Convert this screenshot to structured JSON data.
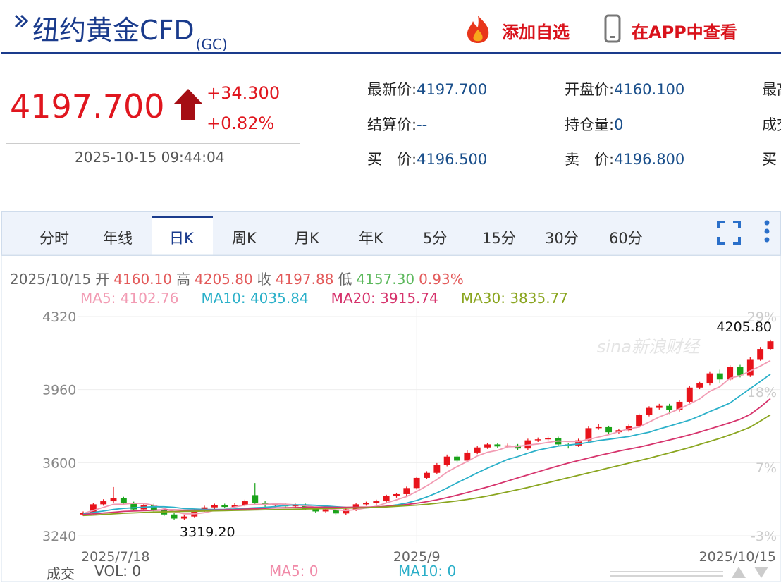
{
  "header": {
    "title": "纽约黄金CFD",
    "code": "(GC)",
    "actions": [
      "添加自选",
      "在APP中查看"
    ]
  },
  "quote": {
    "price": "4197.700",
    "change": "+34.300",
    "change_pct": "+0.82%",
    "time": "2025-10-15 09:44:04",
    "fields": [
      [
        {
          "label": "最新价:",
          "value": "4197.700"
        },
        {
          "label": "开盘价:",
          "value": "4160.100"
        },
        {
          "label": "最高价:"
        }
      ],
      [
        {
          "label": "结算价:",
          "value": "--"
        },
        {
          "label": "持仓量:",
          "value": "0"
        },
        {
          "label": "成交量:"
        }
      ],
      [
        {
          "label": "买　价:",
          "value": "4196.500"
        },
        {
          "label": "卖　价:",
          "value": "4196.800"
        },
        {
          "label": "买　量:"
        }
      ]
    ]
  },
  "tabs": {
    "items": [
      "分时",
      "年线",
      "日K",
      "周K",
      "月K",
      "年K",
      "5分",
      "15分",
      "30分",
      "60分"
    ],
    "active": 2
  },
  "info_line": {
    "date": "2025/10/15",
    "items": [
      {
        "label": "开",
        "value": "4160.10",
        "color": "#e35a5a"
      },
      {
        "label": "高",
        "value": "4205.80",
        "color": "#e35a5a"
      },
      {
        "label": "收",
        "value": "4197.88",
        "color": "#e35a5a"
      },
      {
        "label": "低",
        "value": "4157.30",
        "color": "#5cb85c"
      }
    ],
    "change": "0.93%",
    "change_color": "#e35a5a"
  },
  "volume_line": {
    "label": "成交",
    "items": [
      {
        "text": "VOL: 0",
        "color": "#555555"
      },
      {
        "text": "MA5: 0",
        "color": "#f08aa8"
      },
      {
        "text": "MA10: 0",
        "color": "#2aaec8"
      }
    ]
  },
  "chart_data": {
    "type": "candlestick",
    "watermark": "sina新浪财经",
    "categories": [
      "2025/7/18",
      null,
      null,
      null,
      null,
      null,
      null,
      null,
      null,
      null,
      null,
      null,
      null,
      null,
      null,
      null,
      null,
      null,
      null,
      null,
      null,
      null,
      null,
      null,
      null,
      null,
      null,
      null,
      null,
      null,
      null,
      null,
      null,
      "2025/9",
      null,
      null,
      null,
      null,
      null,
      null,
      null,
      null,
      null,
      null,
      null,
      null,
      null,
      null,
      null,
      null,
      null,
      null,
      null,
      null,
      null,
      null,
      null,
      null,
      null,
      null,
      null,
      null,
      null,
      null,
      null,
      null,
      null,
      null,
      "2025/10/15"
    ],
    "open": [
      3345,
      3352,
      3395,
      3410,
      3425,
      3400,
      3370,
      3390,
      3365,
      3345,
      3325,
      3335,
      3365,
      3380,
      3390,
      3382,
      3392,
      3440,
      3400,
      3390,
      3395,
      3385,
      3390,
      3372,
      3360,
      3370,
      3350,
      3370,
      3395,
      3400,
      3410,
      3435,
      3445,
      3475,
      3525,
      3550,
      3590,
      3630,
      3610,
      3650,
      3675,
      3690,
      3680,
      3685,
      3670,
      3710,
      3715,
      3720,
      3690,
      3685,
      3710,
      3770,
      3775,
      3750,
      3760,
      3780,
      3835,
      3870,
      3880,
      3860,
      3900,
      3970,
      3990,
      4040,
      4010,
      4070,
      4030,
      4110,
      4160.1
    ],
    "high": [
      3360,
      3402,
      3420,
      3480,
      3432,
      3408,
      3398,
      3398,
      3372,
      3352,
      3342,
      3372,
      3388,
      3398,
      3398,
      3400,
      3418,
      3500,
      3410,
      3402,
      3402,
      3398,
      3398,
      3380,
      3378,
      3378,
      3378,
      3402,
      3408,
      3418,
      3442,
      3452,
      3482,
      3532,
      3558,
      3598,
      3640,
      3640,
      3660,
      3684,
      3698,
      3698,
      3694,
      3692,
      3718,
      3724,
      3728,
      3728,
      3698,
      3718,
      3778,
      3790,
      3782,
      3768,
      3788,
      3842,
      3878,
      3890,
      3890,
      3910,
      3978,
      3998,
      4050,
      4058,
      4080,
      4082,
      4120,
      4170,
      4205.8
    ],
    "low": [
      3338,
      3345,
      3388,
      3402,
      3392,
      3362,
      3362,
      3357,
      3337,
      3319.2,
      3320,
      3328,
      3358,
      3372,
      3375,
      3375,
      3385,
      3392,
      3382,
      3382,
      3378,
      3378,
      3365,
      3352,
      3352,
      3342,
      3342,
      3362,
      3388,
      3392,
      3402,
      3428,
      3438,
      3468,
      3518,
      3542,
      3582,
      3602,
      3602,
      3642,
      3668,
      3672,
      3672,
      3662,
      3662,
      3702,
      3708,
      3682,
      3670,
      3678,
      3702,
      3762,
      3742,
      3742,
      3752,
      3772,
      3828,
      3862,
      3840,
      3852,
      3892,
      3962,
      3982,
      3990,
      4002,
      4020,
      4022,
      4102,
      4157.3
    ],
    "close": [
      3352,
      3395,
      3410,
      3425,
      3400,
      3370,
      3390,
      3365,
      3345,
      3325,
      3335,
      3365,
      3380,
      3390,
      3382,
      3392,
      3410,
      3400,
      3390,
      3395,
      3385,
      3390,
      3372,
      3360,
      3370,
      3350,
      3370,
      3395,
      3400,
      3410,
      3435,
      3445,
      3475,
      3525,
      3550,
      3590,
      3630,
      3610,
      3650,
      3675,
      3690,
      3680,
      3685,
      3670,
      3710,
      3715,
      3720,
      3690,
      3685,
      3710,
      3770,
      3775,
      3750,
      3760,
      3780,
      3835,
      3870,
      3880,
      3860,
      3900,
      3970,
      3990,
      4040,
      4010,
      4070,
      4030,
      4110,
      4160,
      4197.88
    ],
    "up_color": "#e8131b",
    "down_color": "#1aa31a",
    "max_label": "4205.80",
    "min_label": "3319.20",
    "ma_series": [
      {
        "name": "MA5: 4102.76",
        "color": "#f29bb3",
        "values": [
          3350,
          3365,
          3380,
          3395,
          3396,
          3400,
          3399,
          3390,
          3374,
          3359,
          3348,
          3348,
          3354,
          3365,
          3370,
          3382,
          3391,
          3395,
          3395,
          3397,
          3396,
          3392,
          3388,
          3380,
          3375,
          3368,
          3364,
          3369,
          3377,
          3385,
          3402,
          3417,
          3433,
          3458,
          3486,
          3517,
          3554,
          3581,
          3606,
          3633,
          3651,
          3661,
          3678,
          3680,
          3687,
          3692,
          3700,
          3707,
          3704,
          3704,
          3715,
          3726,
          3738,
          3753,
          3767,
          3776,
          3800,
          3825,
          3845,
          3865,
          3889,
          3914,
          3952,
          3974,
          4016,
          4028,
          4052,
          4076,
          4102.76
        ]
      },
      {
        "name": "MA10: 4035.84",
        "color": "#2bb0c9",
        "values": [
          3348,
          3355,
          3362,
          3370,
          3375,
          3378,
          3381,
          3383,
          3383,
          3380,
          3374,
          3372,
          3370,
          3370,
          3370,
          3372,
          3375,
          3378,
          3380,
          3384,
          3389,
          3392,
          3392,
          3390,
          3387,
          3383,
          3380,
          3379,
          3378,
          3380,
          3385,
          3392,
          3401,
          3414,
          3431,
          3451,
          3475,
          3501,
          3525,
          3550,
          3573,
          3595,
          3616,
          3630,
          3647,
          3662,
          3672,
          3682,
          3687,
          3692,
          3700,
          3709,
          3715,
          3722,
          3729,
          3740,
          3750,
          3766,
          3780,
          3795,
          3810,
          3830,
          3852,
          3872,
          3894,
          3930,
          3965,
          4000,
          4035.84
        ]
      },
      {
        "name": "MA20: 3915.74",
        "color": "#d6336c",
        "values": [
          3345,
          3348,
          3352,
          3356,
          3360,
          3362,
          3364,
          3366,
          3367,
          3367,
          3366,
          3366,
          3366,
          3367,
          3368,
          3369,
          3371,
          3373,
          3375,
          3377,
          3378,
          3379,
          3380,
          3381,
          3381,
          3380,
          3380,
          3381,
          3381,
          3382,
          3385,
          3389,
          3394,
          3400,
          3408,
          3417,
          3428,
          3440,
          3453,
          3467,
          3480,
          3495,
          3510,
          3525,
          3540,
          3555,
          3570,
          3584,
          3598,
          3611,
          3623,
          3635,
          3646,
          3657,
          3667,
          3677,
          3688,
          3700,
          3712,
          3724,
          3737,
          3751,
          3766,
          3781,
          3797,
          3814,
          3838,
          3874,
          3915.74
        ]
      },
      {
        "name": "MA30: 3835.77",
        "color": "#8aa51f",
        "values": [
          3340,
          3342,
          3345,
          3348,
          3351,
          3353,
          3355,
          3357,
          3358,
          3359,
          3360,
          3361,
          3362,
          3363,
          3364,
          3365,
          3366,
          3367,
          3368,
          3369,
          3370,
          3371,
          3372,
          3373,
          3374,
          3375,
          3376,
          3377,
          3378,
          3380,
          3382,
          3385,
          3388,
          3391,
          3395,
          3400,
          3406,
          3412,
          3419,
          3427,
          3436,
          3446,
          3456,
          3467,
          3478,
          3490,
          3502,
          3514,
          3526,
          3538,
          3550,
          3562,
          3574,
          3586,
          3598,
          3610,
          3622,
          3635,
          3648,
          3661,
          3675,
          3690,
          3705,
          3720,
          3737,
          3755,
          3775,
          3805,
          3835.77
        ]
      }
    ],
    "ylim": [
      3240,
      4320
    ],
    "yticks": [
      3240,
      3600,
      3960,
      4320
    ],
    "y2lim": [
      -3,
      29
    ],
    "y2ticks": [
      {
        "value": -3,
        "label": "-3%"
      },
      {
        "value": 7,
        "label": "7%"
      },
      {
        "value": 18,
        "label": "18%"
      },
      {
        "value": 29,
        "label": "29%"
      }
    ],
    "grid": true
  }
}
